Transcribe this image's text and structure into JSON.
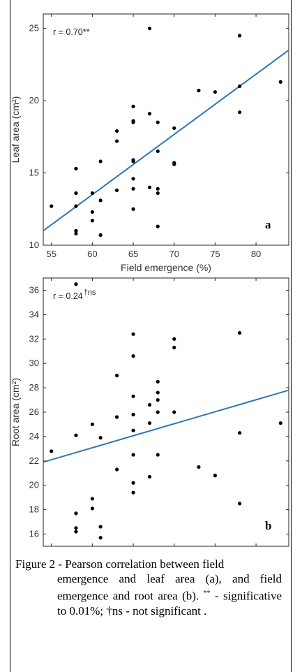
{
  "chart_data": [
    {
      "type": "scatter",
      "title": "",
      "panel_label": "a",
      "annotation": "r = 0.70**",
      "xlabel": "Field emergence (%)",
      "ylabel": "Leaf area (cm²)",
      "xlim": [
        54,
        84
      ],
      "ylim": [
        10,
        26
      ],
      "xticks": [
        55,
        60,
        65,
        70,
        75,
        80
      ],
      "yticks": [
        10,
        15,
        20,
        25
      ],
      "grid": false,
      "points": [
        [
          55,
          12.7
        ],
        [
          58,
          15.3
        ],
        [
          58,
          13.6
        ],
        [
          58,
          12.7
        ],
        [
          58,
          11.0
        ],
        [
          58,
          10.8
        ],
        [
          60,
          13.6
        ],
        [
          60,
          12.3
        ],
        [
          60,
          11.7
        ],
        [
          61,
          15.8
        ],
        [
          61,
          13.1
        ],
        [
          61,
          10.7
        ],
        [
          63,
          17.9
        ],
        [
          63,
          17.2
        ],
        [
          63,
          13.8
        ],
        [
          65,
          19.6
        ],
        [
          65,
          18.6
        ],
        [
          65,
          18.5
        ],
        [
          65,
          15.9
        ],
        [
          65,
          15.8
        ],
        [
          65,
          14.6
        ],
        [
          65,
          13.9
        ],
        [
          65,
          12.5
        ],
        [
          67,
          25.0
        ],
        [
          67,
          19.1
        ],
        [
          67,
          14.0
        ],
        [
          68,
          18.5
        ],
        [
          68,
          16.5
        ],
        [
          68,
          13.9
        ],
        [
          68,
          13.6
        ],
        [
          68,
          11.3
        ],
        [
          70,
          18.1
        ],
        [
          70,
          15.7
        ],
        [
          70,
          15.6
        ],
        [
          73,
          20.7
        ],
        [
          75,
          20.6
        ],
        [
          78,
          24.5
        ],
        [
          78,
          21.0
        ],
        [
          78,
          19.2
        ],
        [
          83,
          21.3
        ]
      ],
      "fit_line": {
        "x": [
          54,
          84
        ],
        "y": [
          11.0,
          23.5
        ]
      },
      "colors": {
        "points": "#000000",
        "line": "#2e75b6"
      }
    },
    {
      "type": "scatter",
      "title": "",
      "panel_label": "b",
      "annotation": "r = 0.24",
      "annotation_sup": "†ns",
      "xlabel": "Field emergence (%)",
      "ylabel": "Root area (cm²)",
      "xlim": [
        54,
        84
      ],
      "ylim": [
        15,
        37
      ],
      "xticks": [
        55,
        60,
        65,
        70,
        75,
        80
      ],
      "yticks": [
        16,
        18,
        20,
        22,
        24,
        26,
        28,
        30,
        32,
        34,
        36
      ],
      "grid": false,
      "points": [
        [
          55,
          22.8
        ],
        [
          58,
          36.5
        ],
        [
          58,
          24.1
        ],
        [
          58,
          17.7
        ],
        [
          58,
          16.5
        ],
        [
          58,
          16.2
        ],
        [
          60,
          25.0
        ],
        [
          60,
          18.9
        ],
        [
          60,
          18.1
        ],
        [
          61,
          23.9
        ],
        [
          61,
          16.6
        ],
        [
          61,
          15.7
        ],
        [
          63,
          29.0
        ],
        [
          63,
          25.6
        ],
        [
          63,
          21.3
        ],
        [
          65,
          32.4
        ],
        [
          65,
          30.6
        ],
        [
          65,
          27.3
        ],
        [
          65,
          25.8
        ],
        [
          65,
          24.5
        ],
        [
          65,
          22.5
        ],
        [
          65,
          20.2
        ],
        [
          65,
          19.4
        ],
        [
          67,
          26.6
        ],
        [
          67,
          25.1
        ],
        [
          67,
          20.7
        ],
        [
          68,
          28.5
        ],
        [
          68,
          27.6
        ],
        [
          68,
          27.0
        ],
        [
          68,
          26.0
        ],
        [
          68,
          22.5
        ],
        [
          70,
          32.0
        ],
        [
          70,
          31.3
        ],
        [
          70,
          26.0
        ],
        [
          73,
          21.5
        ],
        [
          75,
          20.8
        ],
        [
          78,
          32.5
        ],
        [
          78,
          24.3
        ],
        [
          78,
          18.5
        ],
        [
          83,
          25.1
        ]
      ],
      "fit_line": {
        "x": [
          54,
          84
        ],
        "y": [
          21.9,
          27.8
        ]
      },
      "colors": {
        "points": "#000000",
        "line": "#2e75b6"
      }
    }
  ],
  "caption": {
    "line1": "Figure 2 - Pearson correlation between field",
    "rest_a": "emergence and leaf area (a), and field emergence and root area (b).",
    "sup": "**",
    "rest_b": " - significative to 0.01%; †ns - not significant ."
  }
}
